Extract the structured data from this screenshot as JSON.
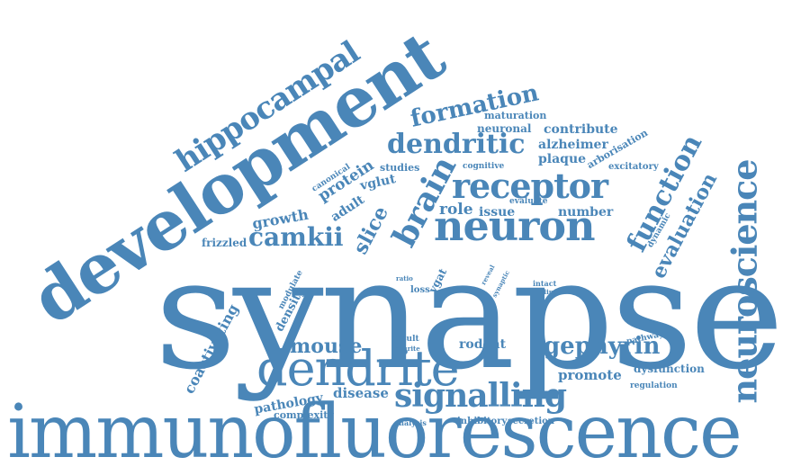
{
  "colors": {
    "word": "#4a86b8",
    "background": "#ffffff"
  },
  "words": [
    "synapse",
    "immunofluorescence",
    "development",
    "dendrite",
    "neuron",
    "receptor",
    "signalling",
    "neuroscience",
    "hippocampal",
    "formation",
    "dendritic",
    "brain",
    "function",
    "camkii",
    "gephyrin",
    "evaluation",
    "mouse",
    "slice",
    "protein",
    "growth",
    "role",
    "issue",
    "number",
    "maturation",
    "neuronal",
    "contribute",
    "alzheimer",
    "plaque",
    "arborisation",
    "excitatory",
    "cognitive",
    "studies",
    "canonical",
    "vglut",
    "adult",
    "frizzled",
    "evaluate",
    "dynamic",
    "density",
    "modulate",
    "coactivating",
    "pathology",
    "disease",
    "complexity",
    "result",
    "neurite",
    "ratio",
    "loss",
    "vgat",
    "reveal",
    "synaptic",
    "intact",
    "finding",
    "rodent",
    "promote",
    "pathway",
    "dysfunction",
    "regulation",
    "analysis",
    "inhibitory",
    "secretion"
  ]
}
